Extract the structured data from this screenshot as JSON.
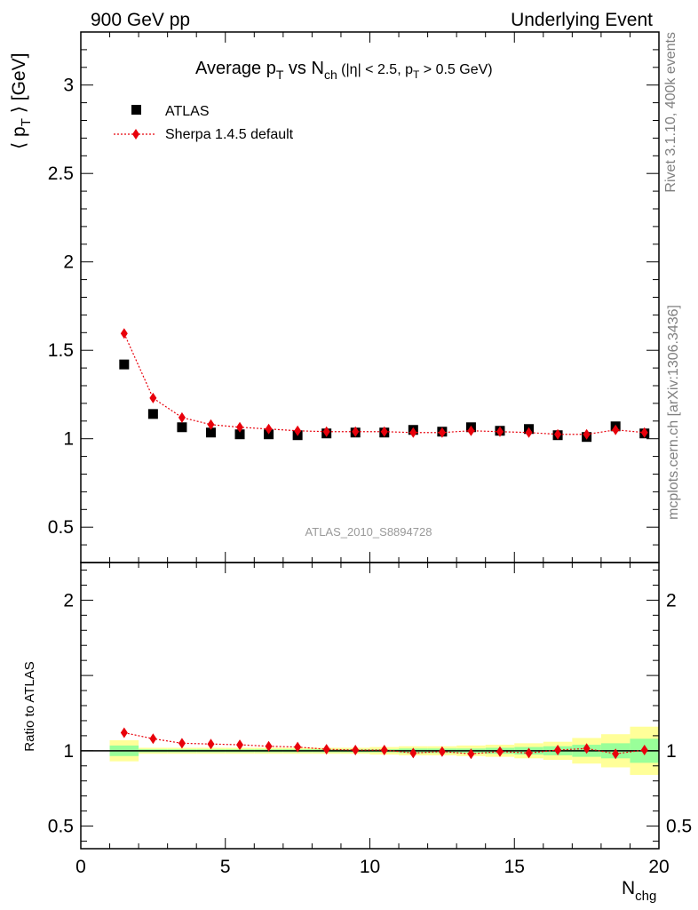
{
  "header": {
    "left": "900 GeV pp",
    "right": "Underlying Event"
  },
  "side_labels": {
    "rivet": "Rivet 3.1.10,  400k events",
    "mcplots": "mcplots.cern.ch [arXiv:1306.3436]"
  },
  "watermark": "ATLAS_2010_S8894728",
  "colors": {
    "data": "#000000",
    "mc": "#e8000b",
    "band_inner": "#99ff99",
    "band_outer": "#ffff99"
  },
  "chart_data": [
    {
      "type": "scatter",
      "panel": "main",
      "title": {
        "prefix": "Average p",
        "sub1": "T",
        "mid": " vs N",
        "sub2": "ch",
        "paren_a": " (|η| < 2.5, p",
        "sub3": "T",
        "paren_b": " > 0.5 GeV)"
      },
      "ylabel": {
        "left": "⟨ p",
        "sub": "T",
        "right": " ⟩ [GeV]"
      },
      "xlim": [
        0,
        20
      ],
      "ylim": [
        0.3,
        3.3
      ],
      "yticks": [
        0.5,
        1,
        1.5,
        2,
        2.5,
        3
      ],
      "yticklabels": [
        "0.5",
        "1",
        "1.5",
        "2",
        "2.5",
        "3"
      ],
      "legend_position": "top-left",
      "series": [
        {
          "name": "ATLAS",
          "marker": "square",
          "x": [
            1.5,
            2.5,
            3.5,
            4.5,
            5.5,
            6.5,
            7.5,
            8.5,
            9.5,
            10.5,
            11.5,
            12.5,
            13.5,
            14.5,
            15.5,
            16.5,
            17.5,
            18.5,
            19.5
          ],
          "y": [
            1.42,
            1.14,
            1.065,
            1.035,
            1.025,
            1.025,
            1.02,
            1.03,
            1.035,
            1.035,
            1.05,
            1.04,
            1.065,
            1.045,
            1.055,
            1.02,
            1.01,
            1.07,
            1.03
          ]
        },
        {
          "name": "Sherpa 1.4.5 default",
          "marker": "diamond",
          "x": [
            1.5,
            2.5,
            3.5,
            4.5,
            5.5,
            6.5,
            7.5,
            8.5,
            9.5,
            10.5,
            11.5,
            12.5,
            13.5,
            14.5,
            15.5,
            16.5,
            17.5,
            18.5,
            19.5
          ],
          "y": [
            1.595,
            1.23,
            1.12,
            1.08,
            1.065,
            1.055,
            1.045,
            1.04,
            1.04,
            1.04,
            1.035,
            1.035,
            1.045,
            1.04,
            1.035,
            1.025,
            1.025,
            1.05,
            1.035
          ]
        }
      ]
    },
    {
      "type": "scatter",
      "panel": "ratio",
      "ylabel": "Ratio to ATLAS",
      "xlabel": {
        "main": "N",
        "sub": "chg"
      },
      "xlim": [
        0,
        20
      ],
      "ylim": [
        0.35,
        2.25
      ],
      "xticks": [
        0,
        5,
        10,
        15,
        20
      ],
      "xticklabels": [
        "0",
        "5",
        "10",
        "15",
        "20"
      ],
      "yticks": [
        0.5,
        1,
        2
      ],
      "yticklabels": [
        "0.5",
        "1",
        "2"
      ],
      "bands": {
        "x_edges": [
          1,
          2,
          3,
          4,
          5,
          6,
          7,
          8,
          9,
          10,
          11,
          12,
          13,
          14,
          15,
          16,
          17,
          18,
          19,
          20
        ],
        "inner_half": [
          0.035,
          0.01,
          0.01,
          0.01,
          0.01,
          0.01,
          0.01,
          0.01,
          0.01,
          0.01,
          0.015,
          0.015,
          0.015,
          0.02,
          0.025,
          0.03,
          0.04,
          0.05,
          0.08
        ],
        "outer_half": [
          0.07,
          0.02,
          0.02,
          0.02,
          0.02,
          0.02,
          0.02,
          0.02,
          0.02,
          0.025,
          0.03,
          0.03,
          0.035,
          0.04,
          0.05,
          0.06,
          0.085,
          0.11,
          0.16
        ]
      },
      "series": [
        {
          "name": "Sherpa 1.4.5 default",
          "marker": "diamond",
          "x": [
            1.5,
            2.5,
            3.5,
            4.5,
            5.5,
            6.5,
            7.5,
            8.5,
            9.5,
            10.5,
            11.5,
            12.5,
            13.5,
            14.5,
            15.5,
            16.5,
            17.5,
            18.5,
            19.5
          ],
          "y": [
            1.12,
            1.08,
            1.05,
            1.045,
            1.04,
            1.03,
            1.025,
            1.01,
            1.005,
            1.005,
            0.985,
            0.995,
            0.98,
            0.995,
            0.985,
            1.005,
            1.015,
            0.98,
            1.005
          ]
        }
      ]
    }
  ]
}
